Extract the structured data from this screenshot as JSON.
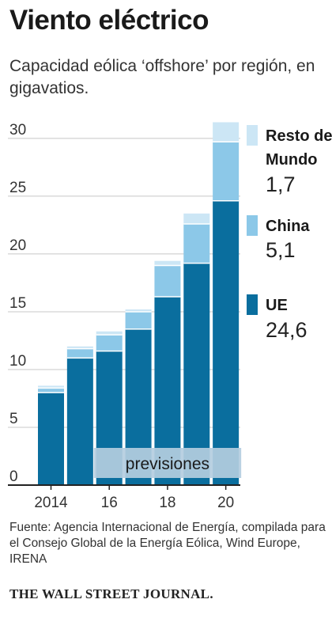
{
  "header": {
    "title": "Viento eléctrico",
    "subtitle": "Capacidad eólica ‘offshore’ por región, en gigavatios."
  },
  "chart_data": {
    "type": "bar",
    "stacked": true,
    "categories": [
      "2014",
      "2015",
      "2016",
      "2017",
      "2018",
      "2019",
      "2020"
    ],
    "x_tick_labels": [
      "2014",
      "16",
      "18",
      "20"
    ],
    "y_ticks": [
      0,
      5,
      10,
      15,
      20,
      25,
      30
    ],
    "ylim": [
      0,
      31.5
    ],
    "grid": true,
    "series": [
      {
        "name": "UE",
        "color": "#0a6e9e",
        "values": [
          8.0,
          11.0,
          11.6,
          13.5,
          16.3,
          19.2,
          24.6
        ]
      },
      {
        "name": "China",
        "color": "#8cc8e8",
        "values": [
          0.4,
          0.8,
          1.4,
          1.5,
          2.7,
          3.4,
          5.1
        ]
      },
      {
        "name": "Resto del Mundo",
        "color": "#cce6f5",
        "values": [
          0.2,
          0.2,
          0.3,
          0.2,
          0.4,
          0.9,
          1.7
        ]
      }
    ],
    "legend": [
      {
        "label": "Resto del Mundo",
        "value": "1,7",
        "color": "#cce6f5"
      },
      {
        "label": "China",
        "value": "5,1",
        "color": "#8cc8e8"
      },
      {
        "label": "UE",
        "value": "24,6",
        "color": "#0a6e9e"
      }
    ],
    "annotation": {
      "text": "previsiones",
      "from_index": 2,
      "to_index": 6
    }
  },
  "footer": {
    "source": "Fuente: Agencia Internacional de Energía, compilada para el Consejo Global de la Energía Eólica, Wind Europe, IRENA",
    "brand": "THE WALL STREET JOURNAL."
  }
}
